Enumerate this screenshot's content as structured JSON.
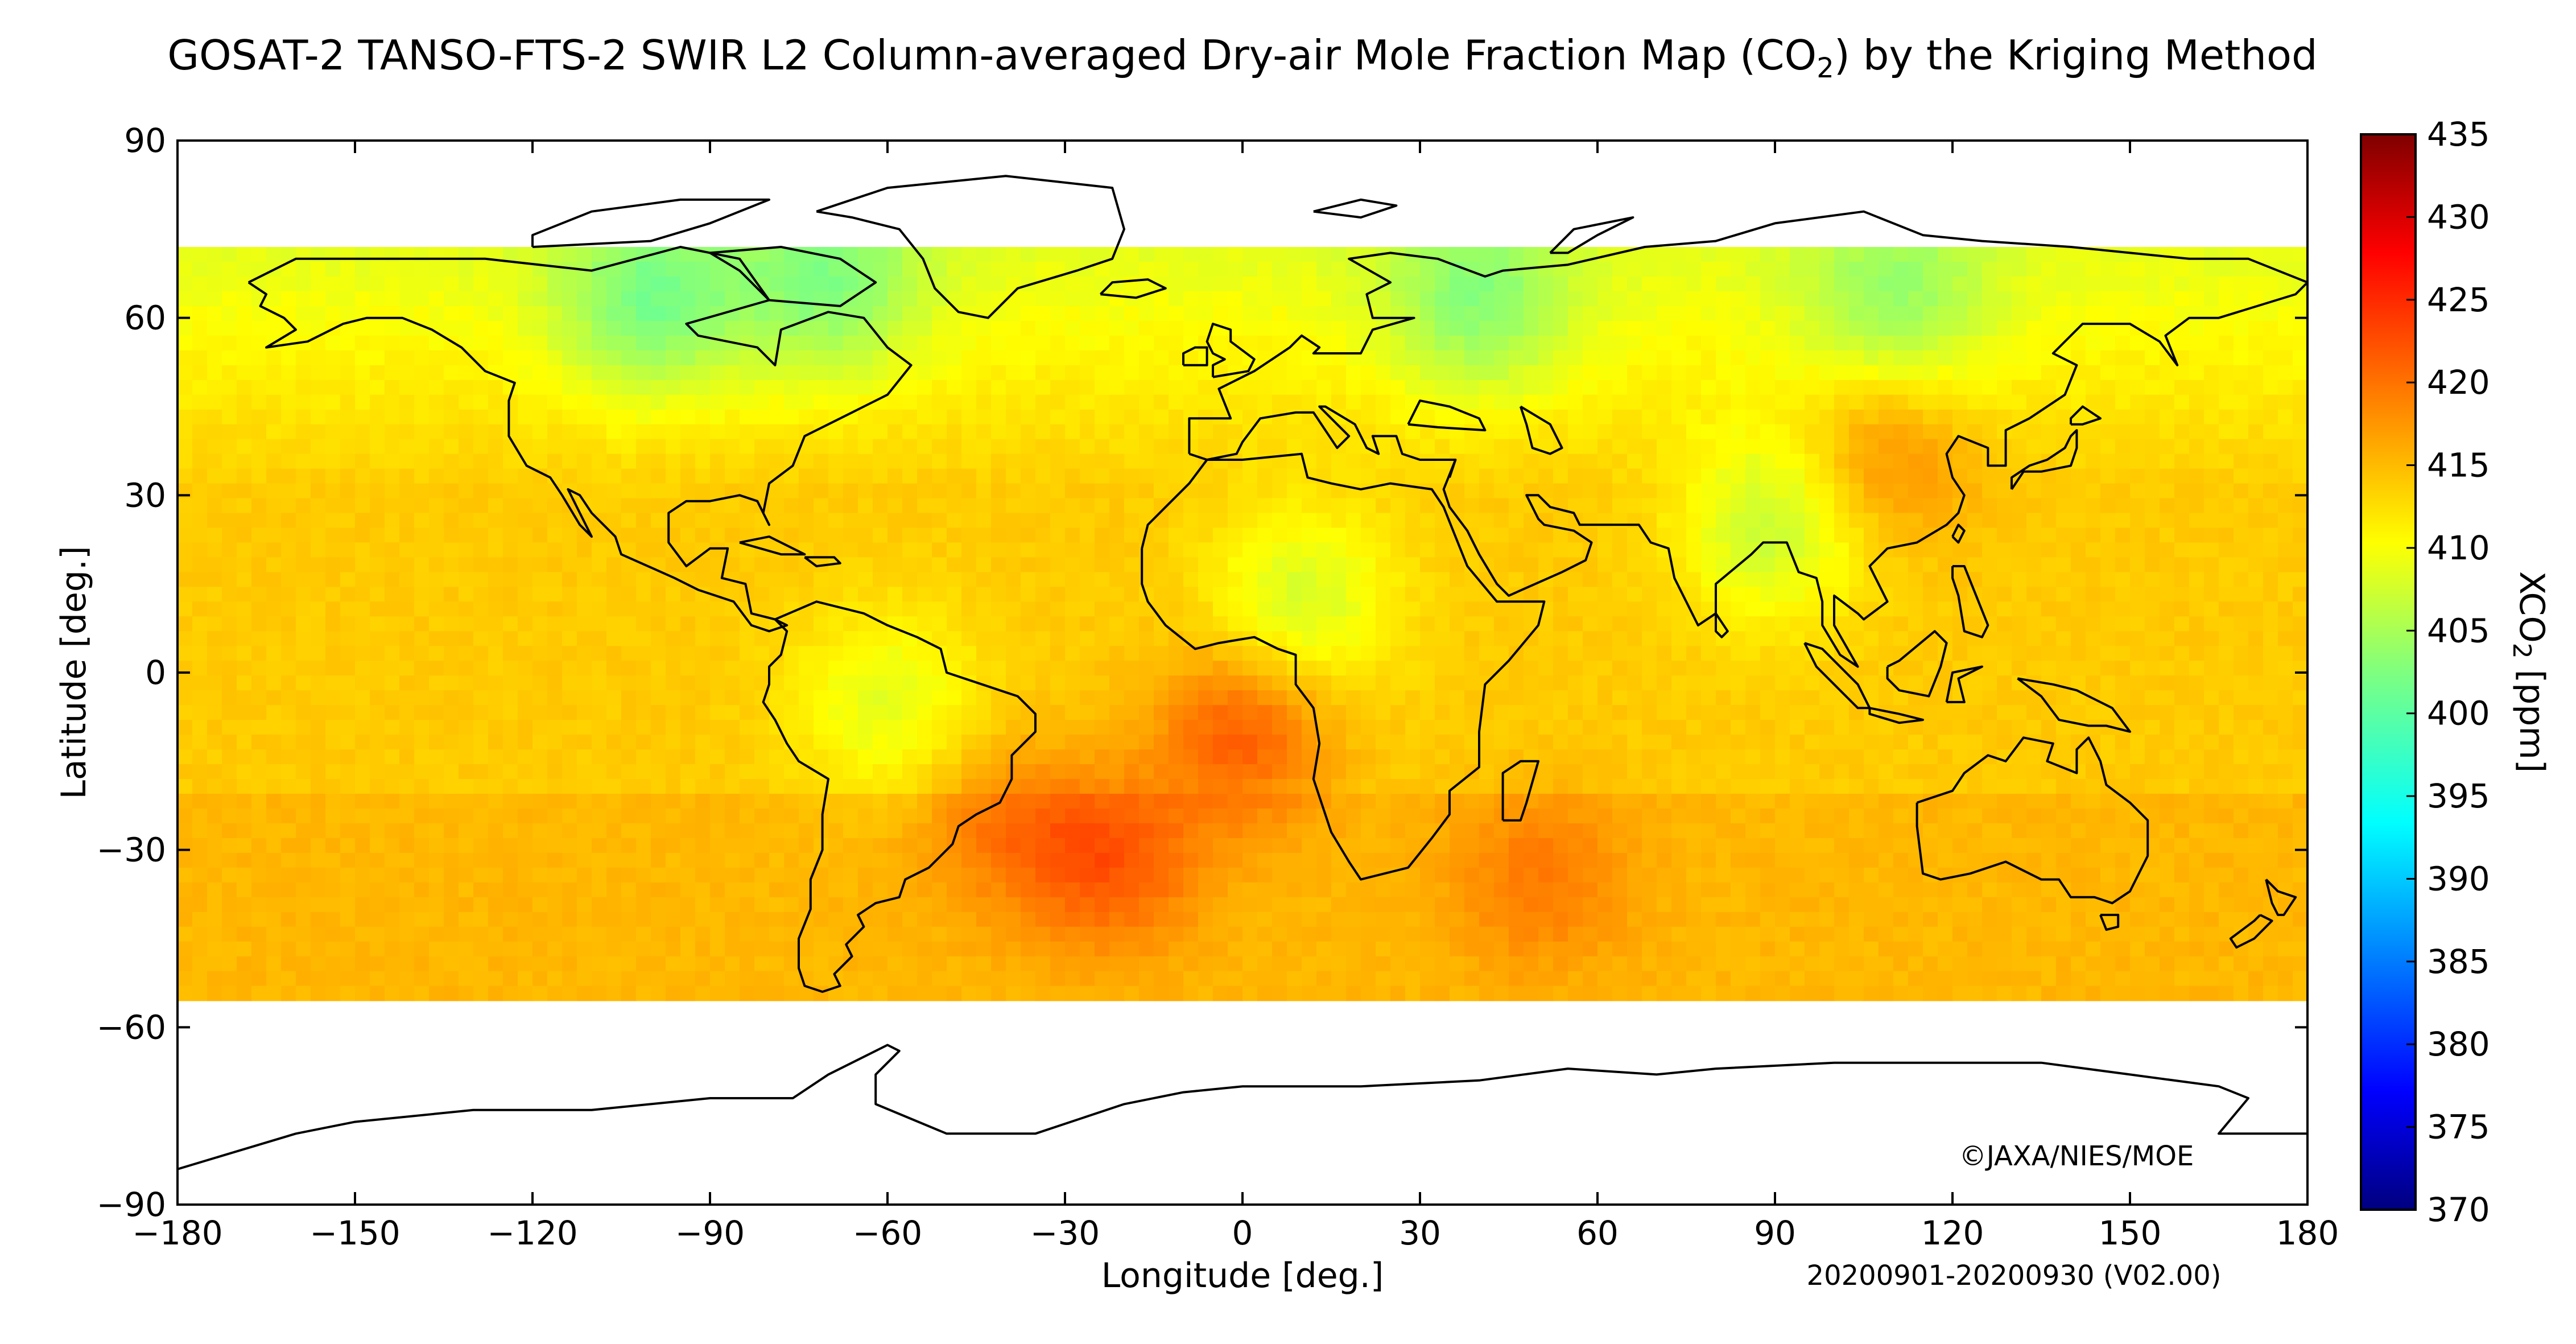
{
  "title": {
    "prefix": "GOSAT-2 TANSO-FTS-2 SWIR L2 Column-averaged Dry-air Mole Fraction Map (CO",
    "sub": "2",
    "suffix": ") by the Kriging Method"
  },
  "axes": {
    "xlabel": "Longitude [deg.]",
    "ylabel": "Latitude [deg.]",
    "xlim": [
      -180,
      180
    ],
    "ylim": [
      -90,
      90
    ],
    "xticks": [
      -180,
      -150,
      -120,
      -90,
      -60,
      -30,
      0,
      30,
      60,
      90,
      120,
      150,
      180
    ],
    "yticks": [
      90,
      60,
      30,
      0,
      -30,
      -60,
      -90
    ]
  },
  "colorbar": {
    "label_prefix": "XCO",
    "label_sub": "2",
    "label_suffix": " [ppm]",
    "min": 370,
    "max": 435,
    "ticks": [
      435,
      430,
      425,
      420,
      415,
      410,
      405,
      400,
      395,
      390,
      385,
      380,
      375,
      370
    ],
    "colormap": "jet"
  },
  "credit": "©JAXA/NIES/MOE",
  "period": "20200901-20200930 (V02.00)",
  "data_coverage": {
    "lat_min": -55,
    "lat_max": 72
  },
  "chart_data": {
    "type": "heatmap",
    "quantity": "XCO2",
    "unit": "ppm",
    "period": "20200901-20200930",
    "version": "V02.00",
    "value_range": [
      370,
      435
    ],
    "hotspots": [
      {
        "lon": 0,
        "lat": -10,
        "value": 421
      },
      {
        "lon": -22,
        "lat": -32,
        "value": 420
      },
      {
        "lon": 50,
        "lat": -35,
        "value": 418
      },
      {
        "lon": -40,
        "lat": -25,
        "value": 418
      },
      {
        "lon": 108,
        "lat": 38,
        "value": 419
      }
    ],
    "lows": [
      {
        "lon": -100,
        "lat": 62,
        "value": 404
      },
      {
        "lon": -70,
        "lat": 65,
        "value": 405
      },
      {
        "lon": 40,
        "lat": 62,
        "value": 405
      },
      {
        "lon": 10,
        "lat": 12,
        "value": 406
      },
      {
        "lon": -60,
        "lat": -5,
        "value": 407
      },
      {
        "lon": 90,
        "lat": 25,
        "value": 405
      },
      {
        "lon": 110,
        "lat": 62,
        "value": 406
      }
    ]
  }
}
